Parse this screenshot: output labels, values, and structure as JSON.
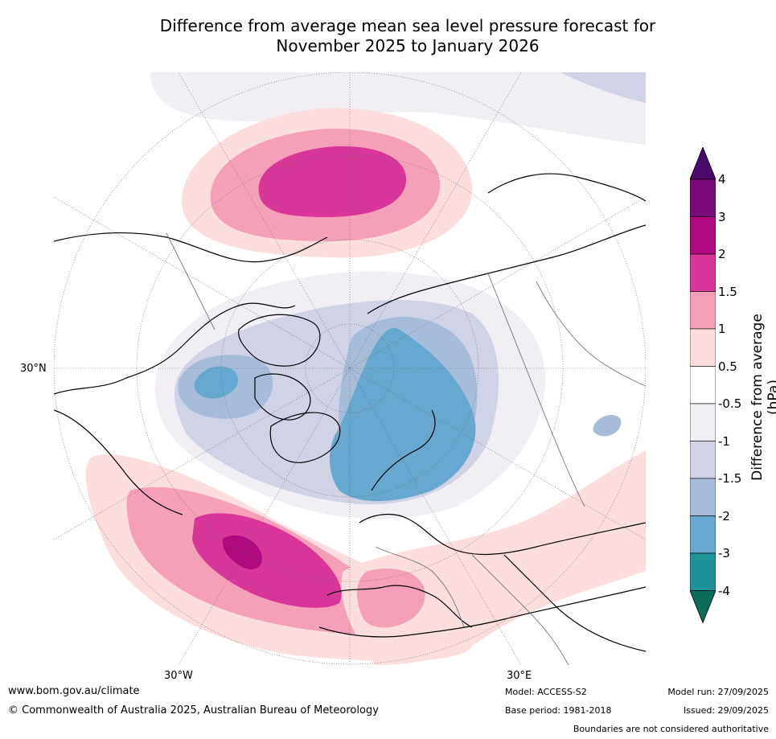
{
  "title_line1": "Difference from average mean sea level pressure forecast for",
  "title_line2": "November 2025 to January 2026",
  "map_labels": {
    "lat_30n": "30°N",
    "lon_30w": "30°W",
    "lon_30e": "30°E"
  },
  "colorbar": {
    "title": "Difference from average (hPa)",
    "ticks": [
      "4",
      "3",
      "2",
      "1.5",
      "1",
      "0.5",
      "-0.5",
      "-1",
      "-1.5",
      "-2",
      "-3",
      "-4"
    ],
    "colors": {
      "over": "#4a0a6b",
      "c3_4": "#7a0a7a",
      "c2_3": "#b0087e",
      "c15_2": "#d9369a",
      "c1_15": "#f5a0b8",
      "c05_1": "#fddede",
      "c0": "#ffffff",
      "cm1_m05": "#f1eef4",
      "cm15_m1": "#d0d3e6",
      "cm2_m15": "#a6bcd9",
      "cm3_m2": "#66a8cf",
      "cm4_m3": "#1e9297",
      "under": "#0a6e5a"
    }
  },
  "footer": {
    "website": "www.bom.gov.au/climate",
    "copyright": "© Commonwealth of Australia 2025, Australian Bureau of Meteorology",
    "model": "Model: ACCESS-S2",
    "base_period": "Base period: 1981-2018",
    "model_run": "Model run: 27/09/2025",
    "issued": "Issued: 29/09/2025",
    "disclaimer": "Boundaries are not considered authoritative"
  }
}
